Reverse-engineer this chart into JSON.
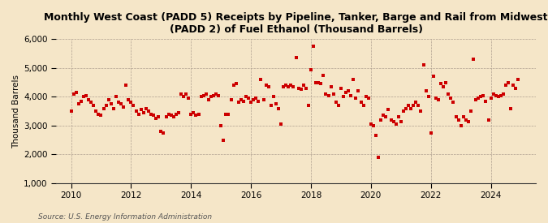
{
  "title": "Monthly West Coast (PADD 5) Receipts by Pipeline, Tanker, Barge and Rail from Midwest\n(PADD 2) of Fuel Ethanol (Thousand Barrels)",
  "ylabel": "Thousand Barrels",
  "source": "Source: U.S. Energy Information Administration",
  "bg_color": "#f5e6c8",
  "plot_bg_color": "#f5e6c8",
  "marker_color": "#cc0000",
  "ylim": [
    1000,
    6000
  ],
  "yticks": [
    1000,
    2000,
    3000,
    4000,
    5000,
    6000
  ],
  "xlim_start": 2009.5,
  "xlim_end": 2025.5,
  "xticks": [
    2010,
    2012,
    2014,
    2016,
    2018,
    2020,
    2022,
    2024
  ],
  "data": [
    [
      2010.0,
      3500
    ],
    [
      2010.083,
      4100
    ],
    [
      2010.167,
      4150
    ],
    [
      2010.25,
      3750
    ],
    [
      2010.333,
      3850
    ],
    [
      2010.417,
      4000
    ],
    [
      2010.5,
      4050
    ],
    [
      2010.583,
      3900
    ],
    [
      2010.667,
      3800
    ],
    [
      2010.75,
      3700
    ],
    [
      2010.833,
      3500
    ],
    [
      2010.917,
      3400
    ],
    [
      2011.0,
      3350
    ],
    [
      2011.083,
      3600
    ],
    [
      2011.167,
      3700
    ],
    [
      2011.25,
      3900
    ],
    [
      2011.333,
      3750
    ],
    [
      2011.417,
      3600
    ],
    [
      2011.5,
      4000
    ],
    [
      2011.583,
      3800
    ],
    [
      2011.667,
      3750
    ],
    [
      2011.75,
      3650
    ],
    [
      2011.833,
      4400
    ],
    [
      2011.917,
      3900
    ],
    [
      2012.0,
      3800
    ],
    [
      2012.083,
      3700
    ],
    [
      2012.167,
      3500
    ],
    [
      2012.25,
      3400
    ],
    [
      2012.333,
      3550
    ],
    [
      2012.417,
      3450
    ],
    [
      2012.5,
      3600
    ],
    [
      2012.583,
      3500
    ],
    [
      2012.667,
      3400
    ],
    [
      2012.75,
      3350
    ],
    [
      2012.833,
      3250
    ],
    [
      2012.917,
      3300
    ],
    [
      2013.0,
      2800
    ],
    [
      2013.083,
      2750
    ],
    [
      2013.167,
      3300
    ],
    [
      2013.25,
      3400
    ],
    [
      2013.333,
      3350
    ],
    [
      2013.417,
      3300
    ],
    [
      2013.5,
      3400
    ],
    [
      2013.583,
      3450
    ],
    [
      2013.667,
      4100
    ],
    [
      2013.75,
      4000
    ],
    [
      2013.833,
      4100
    ],
    [
      2013.917,
      3950
    ],
    [
      2014.0,
      3400
    ],
    [
      2014.083,
      3450
    ],
    [
      2014.167,
      3350
    ],
    [
      2014.25,
      3400
    ],
    [
      2014.333,
      4000
    ],
    [
      2014.417,
      4050
    ],
    [
      2014.5,
      4100
    ],
    [
      2014.583,
      3900
    ],
    [
      2014.667,
      4000
    ],
    [
      2014.75,
      4050
    ],
    [
      2014.833,
      4100
    ],
    [
      2014.917,
      4050
    ],
    [
      2015.0,
      3000
    ],
    [
      2015.083,
      2500
    ],
    [
      2015.167,
      3400
    ],
    [
      2015.25,
      3400
    ],
    [
      2015.333,
      3900
    ],
    [
      2015.417,
      4400
    ],
    [
      2015.5,
      4450
    ],
    [
      2015.583,
      3800
    ],
    [
      2015.667,
      3900
    ],
    [
      2015.75,
      3850
    ],
    [
      2015.833,
      4000
    ],
    [
      2015.917,
      3950
    ],
    [
      2016.0,
      3800
    ],
    [
      2016.083,
      3900
    ],
    [
      2016.167,
      3950
    ],
    [
      2016.25,
      3850
    ],
    [
      2016.333,
      4600
    ],
    [
      2016.417,
      3900
    ],
    [
      2016.5,
      4400
    ],
    [
      2016.583,
      4350
    ],
    [
      2016.667,
      3700
    ],
    [
      2016.75,
      4000
    ],
    [
      2016.833,
      3750
    ],
    [
      2016.917,
      3600
    ],
    [
      2017.0,
      3050
    ],
    [
      2017.083,
      4350
    ],
    [
      2017.167,
      4400
    ],
    [
      2017.25,
      4350
    ],
    [
      2017.333,
      4400
    ],
    [
      2017.417,
      4350
    ],
    [
      2017.5,
      5350
    ],
    [
      2017.583,
      4300
    ],
    [
      2017.667,
      4250
    ],
    [
      2017.75,
      4400
    ],
    [
      2017.833,
      4300
    ],
    [
      2017.917,
      3700
    ],
    [
      2018.0,
      4950
    ],
    [
      2018.083,
      5750
    ],
    [
      2018.167,
      4500
    ],
    [
      2018.25,
      4500
    ],
    [
      2018.333,
      4450
    ],
    [
      2018.417,
      4750
    ],
    [
      2018.5,
      4100
    ],
    [
      2018.583,
      4050
    ],
    [
      2018.667,
      4350
    ],
    [
      2018.75,
      4100
    ],
    [
      2018.833,
      3800
    ],
    [
      2018.917,
      3700
    ],
    [
      2019.0,
      4300
    ],
    [
      2019.083,
      4000
    ],
    [
      2019.167,
      4150
    ],
    [
      2019.25,
      4200
    ],
    [
      2019.333,
      4050
    ],
    [
      2019.417,
      4600
    ],
    [
      2019.5,
      3950
    ],
    [
      2019.583,
      4200
    ],
    [
      2019.667,
      3800
    ],
    [
      2019.75,
      3700
    ],
    [
      2019.833,
      4000
    ],
    [
      2019.917,
      3950
    ],
    [
      2020.0,
      3050
    ],
    [
      2020.083,
      3000
    ],
    [
      2020.167,
      2650
    ],
    [
      2020.25,
      1900
    ],
    [
      2020.333,
      3200
    ],
    [
      2020.417,
      3350
    ],
    [
      2020.5,
      3300
    ],
    [
      2020.583,
      3550
    ],
    [
      2020.667,
      3200
    ],
    [
      2020.75,
      3150
    ],
    [
      2020.833,
      3050
    ],
    [
      2020.917,
      3300
    ],
    [
      2021.0,
      3150
    ],
    [
      2021.083,
      3500
    ],
    [
      2021.167,
      3600
    ],
    [
      2021.25,
      3700
    ],
    [
      2021.333,
      3600
    ],
    [
      2021.417,
      3700
    ],
    [
      2021.5,
      3800
    ],
    [
      2021.583,
      3700
    ],
    [
      2021.667,
      3500
    ],
    [
      2021.75,
      5100
    ],
    [
      2021.833,
      4200
    ],
    [
      2021.917,
      4000
    ],
    [
      2022.0,
      2750
    ],
    [
      2022.083,
      4700
    ],
    [
      2022.167,
      3950
    ],
    [
      2022.25,
      3900
    ],
    [
      2022.333,
      4450
    ],
    [
      2022.417,
      4350
    ],
    [
      2022.5,
      4500
    ],
    [
      2022.583,
      4100
    ],
    [
      2022.667,
      3950
    ],
    [
      2022.75,
      3800
    ],
    [
      2022.833,
      3300
    ],
    [
      2022.917,
      3200
    ],
    [
      2023.0,
      3000
    ],
    [
      2023.083,
      3300
    ],
    [
      2023.167,
      3200
    ],
    [
      2023.25,
      3150
    ],
    [
      2023.333,
      3500
    ],
    [
      2023.417,
      5300
    ],
    [
      2023.5,
      3900
    ],
    [
      2023.583,
      3950
    ],
    [
      2023.667,
      4000
    ],
    [
      2023.75,
      4050
    ],
    [
      2023.833,
      3850
    ],
    [
      2023.917,
      3200
    ],
    [
      2024.0,
      3950
    ],
    [
      2024.083,
      4100
    ],
    [
      2024.167,
      4050
    ],
    [
      2024.25,
      4000
    ],
    [
      2024.333,
      4050
    ],
    [
      2024.417,
      4100
    ],
    [
      2024.5,
      4400
    ],
    [
      2024.583,
      4500
    ],
    [
      2024.667,
      3600
    ],
    [
      2024.75,
      4400
    ],
    [
      2024.833,
      4300
    ],
    [
      2024.917,
      4600
    ]
  ]
}
